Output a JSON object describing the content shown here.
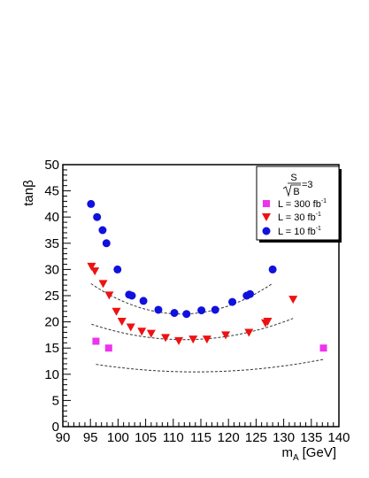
{
  "chart_data": {
    "type": "scatter",
    "title": "",
    "xlabel": "m",
    "xlabel_sub": "A",
    "xlabel_unit": "[GeV]",
    "ylabel": "tanβ",
    "xlim": [
      90,
      140
    ],
    "ylim": [
      0,
      50
    ],
    "x_ticks": [
      90,
      95,
      100,
      105,
      110,
      115,
      120,
      125,
      130,
      135,
      140
    ],
    "y_ticks": [
      0,
      5,
      10,
      15,
      20,
      25,
      30,
      35,
      40,
      45,
      50
    ],
    "grid": false,
    "legend_position": "top-right",
    "legend_header": {
      "num": "S",
      "den": "B",
      "eq": "=3"
    },
    "series": [
      {
        "name": "L = 300 fb",
        "name_sup": "-1",
        "marker": "square",
        "color": "#ee33ee",
        "x": [
          96,
          98.3,
          137.2
        ],
        "y": [
          16.3,
          15.0,
          15.0
        ],
        "fit": {
          "a": 0.00444,
          "b": 114.0,
          "c": 10.45
        }
      },
      {
        "name": "L = 30 fb",
        "name_sup": "-1",
        "marker": "triangle-down",
        "color": "#ee1111",
        "x": [
          95.2,
          95.8,
          97.3,
          98.4,
          99.7,
          100.7,
          102.3,
          104.3,
          106.0,
          108.6,
          111.0,
          113.6,
          116.1,
          119.5,
          123.7,
          126.7,
          127.1,
          131.7
        ],
        "y": [
          30.6,
          29.7,
          27.3,
          25.1,
          22.0,
          20.1,
          19.0,
          18.2,
          17.8,
          17.0,
          16.4,
          16.7,
          16.7,
          17.5,
          18.0,
          19.8,
          20.1,
          24.3
        ],
        "fit": {
          "a": 0.01045,
          "b": 112.0,
          "c": 16.6
        }
      },
      {
        "name": "L = 10 fb",
        "name_sup": "-1",
        "marker": "circle",
        "color": "#1111dd",
        "x": [
          95.1,
          96.2,
          97.2,
          97.9,
          99.9,
          102.0,
          102.5,
          104.6,
          107.3,
          110.2,
          112.4,
          115.1,
          117.6,
          120.7,
          123.3,
          123.9,
          128.0
        ],
        "y": [
          42.5,
          40.0,
          37.5,
          35.0,
          30.0,
          25.2,
          25.0,
          24.0,
          22.3,
          21.7,
          21.5,
          22.2,
          22.3,
          23.8,
          25.0,
          25.3,
          30.0
        ],
        "fit": {
          "a": 0.0215,
          "b": 111.5,
          "c": 21.5
        }
      }
    ]
  }
}
